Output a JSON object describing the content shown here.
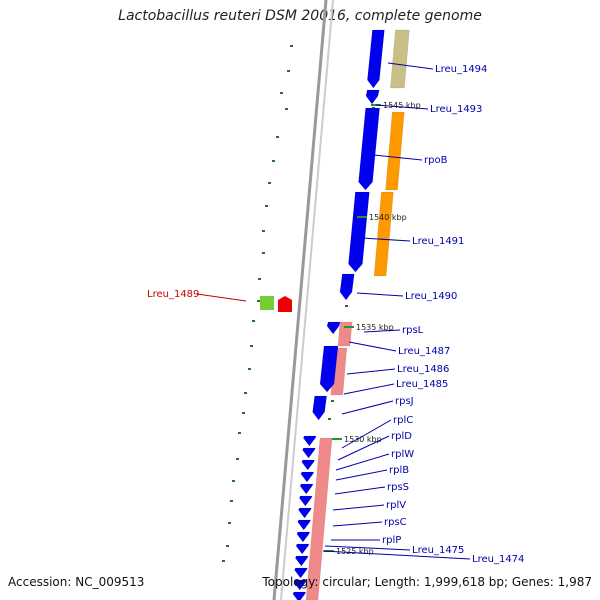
{
  "title": "Lactobacillus reuteri DSM 20016, complete genome",
  "accession": "Accession: NC_009513",
  "topology": "Topology: circular; Length: 1,999,618 bp; Genes: 1,987",
  "colors": {
    "forward_gene": "#0000ee",
    "backbone": "#888888",
    "tan": "#c8c087",
    "orange": "#ff9900",
    "pink": "#f08a8a",
    "label_blue": "#0000aa",
    "label_red": "#cc0000",
    "gc_dots": "#227722"
  },
  "scale_marks": [
    "1545 kbp",
    "1540 kbp",
    "1535 kbp",
    "1530 kbp",
    "1525 kbp"
  ],
  "gene_labels": [
    {
      "text": "Lreu_1494",
      "color": "blue"
    },
    {
      "text": "Lreu_1493",
      "color": "blue"
    },
    {
      "text": "rpoB",
      "color": "blue"
    },
    {
      "text": "Lreu_1491",
      "color": "blue"
    },
    {
      "text": "Lreu_1490",
      "color": "blue"
    },
    {
      "text": "Lreu_1489",
      "color": "red"
    },
    {
      "text": "rpsL",
      "color": "blue"
    },
    {
      "text": "Lreu_1487",
      "color": "blue"
    },
    {
      "text": "Lreu_1486",
      "color": "blue"
    },
    {
      "text": "Lreu_1485",
      "color": "blue"
    },
    {
      "text": "rpsJ",
      "color": "blue"
    },
    {
      "text": "rplC",
      "color": "blue"
    },
    {
      "text": "rplD",
      "color": "blue"
    },
    {
      "text": "rplW",
      "color": "blue"
    },
    {
      "text": "rplB",
      "color": "blue"
    },
    {
      "text": "rpsS",
      "color": "blue"
    },
    {
      "text": "rplV",
      "color": "blue"
    },
    {
      "text": "rpsC",
      "color": "blue"
    },
    {
      "text": "rplP",
      "color": "blue"
    },
    {
      "text": "Lreu_1475",
      "color": "blue"
    },
    {
      "text": "Lreu_1474",
      "color": "blue"
    }
  ]
}
